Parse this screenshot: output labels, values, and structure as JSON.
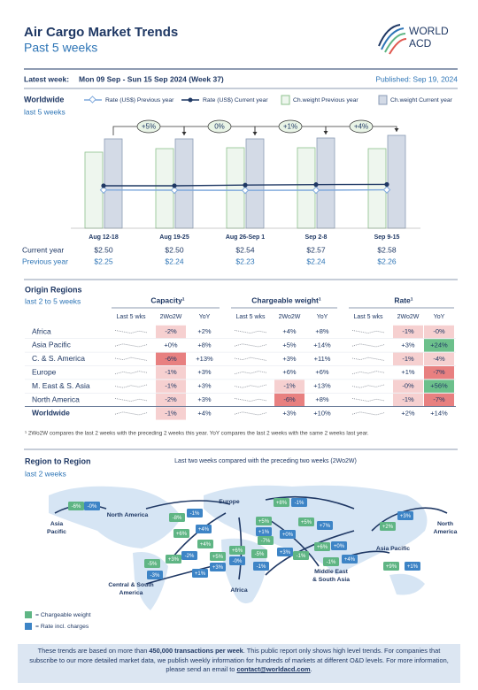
{
  "header": {
    "title": "Air Cargo Market Trends",
    "subtitle": "Past 5 weeks",
    "logo": [
      "WORLD",
      "ACD"
    ],
    "latest_week_label": "Latest week:",
    "latest_week": "Mon 09 Sep - Sun 15 Sep 2024 (Week 37)",
    "published": "Published: Sep 19, 2024"
  },
  "chart_data": {
    "type": "bar-line",
    "title": "Worldwide",
    "subtitle": "last 5 weeks",
    "categories": [
      "Aug 12-18",
      "Aug 19-25",
      "Aug 26-Sep 1",
      "Sep 2-8",
      "Sep 9-15"
    ],
    "series": [
      {
        "name": "Rate (US$) Previous year",
        "type": "line",
        "color": "#7fa9dc",
        "values": [
          2.25,
          2.24,
          2.23,
          2.24,
          2.26
        ],
        "value_labels": [
          "$2.25",
          "$2.24",
          "$2.23",
          "$2.24",
          "$2.26"
        ]
      },
      {
        "name": "Rate (US$) Current year",
        "type": "line",
        "color": "#1f3864",
        "values": [
          2.5,
          2.5,
          2.54,
          2.57,
          2.58
        ],
        "value_labels": [
          "$2.50",
          "$2.50",
          "$2.54",
          "$2.57",
          "$2.58"
        ]
      },
      {
        "name": "Ch.weight Previous year",
        "type": "bar",
        "color": "#eef6ee",
        "values": [
          86,
          90,
          91,
          91,
          90
        ]
      },
      {
        "name": "Ch.weight Current year",
        "type": "bar",
        "color": "#d3dae6",
        "values": [
          101,
          101,
          101,
          102,
          105
        ]
      }
    ],
    "row_labels": [
      "Current year",
      "Previous year"
    ],
    "annotations": [
      "+5%",
      "0%",
      "+1%",
      "+4%"
    ]
  },
  "origin_table": {
    "title": "Origin Regions",
    "subtitle": "last 2 to 5 weeks",
    "groups": [
      "Capacity¹",
      "Chargeable weight¹",
      "Rate¹"
    ],
    "columns": [
      "Last 5 wks",
      "2Wo2W",
      "YoY"
    ],
    "rows": [
      {
        "region": "Africa",
        "cells": [
          "-2%",
          "+2%",
          "+4%",
          "+8%",
          "-1%",
          "-0%"
        ]
      },
      {
        "region": "Asia Pacific",
        "cells": [
          "+0%",
          "+8%",
          "+5%",
          "+14%",
          "+3%",
          "+24%"
        ]
      },
      {
        "region": "C. & S. America",
        "cells": [
          "-6%",
          "+13%",
          "+3%",
          "+11%",
          "-1%",
          "-4%"
        ]
      },
      {
        "region": "Europe",
        "cells": [
          "-1%",
          "+3%",
          "+6%",
          "+6%",
          "+1%",
          "-7%"
        ]
      },
      {
        "region": "M. East & S. Asia",
        "cells": [
          "-1%",
          "+3%",
          "-1%",
          "+13%",
          "-0%",
          "+56%"
        ]
      },
      {
        "region": "North America",
        "cells": [
          "-2%",
          "+3%",
          "-6%",
          "+8%",
          "-1%",
          "-7%"
        ]
      },
      {
        "region": "Worldwide",
        "cells": [
          "-1%",
          "+4%",
          "+3%",
          "+10%",
          "+2%",
          "+14%"
        ]
      }
    ],
    "footnote": "¹ 2Wo2W compares the last 2 weeks with the preceding 2 weeks this year. YoY compares the last 2 weeks with the same 2 weeks last year."
  },
  "region_map": {
    "title": "Region to Region",
    "subtitle": "last 2 weeks",
    "note": "Last two weeks compared with the preceding two weeks (2Wo2W)",
    "regions": [
      {
        "lines": [
          "Asia",
          "Pacific"
        ]
      },
      {
        "lines": [
          "North America"
        ]
      },
      {
        "lines": [
          "Europe"
        ]
      },
      {
        "lines": [
          "Central & South",
          "America"
        ]
      },
      {
        "lines": [
          "Africa"
        ]
      },
      {
        "lines": [
          "Middle East",
          "& South Asia"
        ]
      },
      {
        "lines": [
          "Asia Pacific"
        ]
      },
      {
        "lines": [
          "North",
          "America"
        ]
      }
    ],
    "flows": [
      {
        "label": "-6%",
        "color": "#5fb584"
      },
      {
        "label": "-0%",
        "color": "#3d84c6"
      },
      {
        "label": "-8%",
        "color": "#5fb584"
      },
      {
        "label": "-1%",
        "color": "#3d84c6"
      },
      {
        "label": "+6%",
        "color": "#5fb584"
      },
      {
        "label": "+4%",
        "color": "#3d84c6"
      },
      {
        "label": "+8%",
        "color": "#5fb584"
      },
      {
        "label": "-1%",
        "color": "#3d84c6"
      },
      {
        "label": "+5%",
        "color": "#5fb584"
      },
      {
        "label": "+1%",
        "color": "#3d84c6"
      },
      {
        "label": "+5%",
        "color": "#5fb584"
      },
      {
        "label": "+7%",
        "color": "#3d84c6"
      },
      {
        "label": "-7%",
        "color": "#5fb584"
      },
      {
        "label": "+0%",
        "color": "#3d84c6"
      },
      {
        "label": "+3%",
        "color": "#3d84c6"
      },
      {
        "label": "+2%",
        "color": "#5fb584"
      },
      {
        "label": "+3%",
        "color": "#3d84c6"
      },
      {
        "label": "-1%",
        "color": "#5fb584"
      },
      {
        "label": "+6%",
        "color": "#5fb584"
      },
      {
        "label": "+0%",
        "color": "#3d84c6"
      },
      {
        "label": "-1%",
        "color": "#5fb584"
      },
      {
        "label": "+4%",
        "color": "#3d84c6"
      },
      {
        "label": "+4%",
        "color": "#5fb584"
      },
      {
        "label": "+3%",
        "color": "#5fb584"
      },
      {
        "label": "-2%",
        "color": "#3d84c6"
      },
      {
        "label": "+5%",
        "color": "#5fb584"
      },
      {
        "label": "+3%",
        "color": "#3d84c6"
      },
      {
        "label": "+1%",
        "color": "#3d84c6"
      },
      {
        "label": "+6%",
        "color": "#5fb584"
      },
      {
        "label": "-0%",
        "color": "#3d84c6"
      },
      {
        "label": "-5%",
        "color": "#5fb584"
      },
      {
        "label": "-1%",
        "color": "#3d84c6"
      },
      {
        "label": "-5%",
        "color": "#5fb584"
      },
      {
        "label": "-3%",
        "color": "#3d84c6"
      },
      {
        "label": "+9%",
        "color": "#5fb584"
      },
      {
        "label": "+1%",
        "color": "#3d84c6"
      }
    ],
    "legend": [
      {
        "label": "= Chargeable weight",
        "color": "#5fb584"
      },
      {
        "label": "= Rate incl. charges",
        "color": "#3d84c6"
      }
    ]
  },
  "footer": {
    "segments": [
      {
        "text": "These trends are based on more than ",
        "bold": false
      },
      {
        "text": "450,000 transactions per week",
        "bold": true
      },
      {
        "text": ". This public report only shows high level trends. For companies that subscribe to our more detailed market data, we publish weekly information for hundreds of markets at different O&D levels. For more information, please send an email to ",
        "bold": false
      },
      {
        "text": "contact@worldacd.com",
        "bold": true,
        "link": true
      },
      {
        "text": ".",
        "bold": false
      }
    ]
  }
}
